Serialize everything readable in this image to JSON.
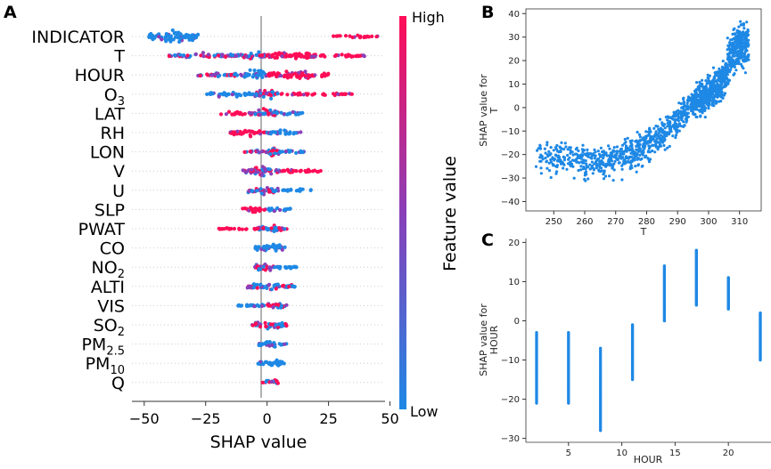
{
  "panel_labels": {
    "a": "A",
    "b": "B",
    "c": "C"
  },
  "colors": {
    "low": "#1E88E5",
    "high": "#FF0D57",
    "mid": "#8A3FB8",
    "axis": "#333333",
    "zero": "#999999"
  },
  "chart_data": [
    {
      "type": "beeswarm",
      "xlabel": "SHAP value",
      "xlim": [
        -55,
        48
      ],
      "xticks": [
        -50,
        -25,
        0,
        25,
        50
      ],
      "tick_labels": [
        "−50",
        "−25",
        "0",
        "25",
        "50"
      ],
      "colorbar": {
        "title": "Feature value",
        "high_label": "High",
        "low_label": "Low"
      },
      "features": [
        {
          "name": "INDICATOR",
          "sub": "",
          "range": [
            -48,
            45
          ],
          "groups": [
            {
              "from": -48,
              "to": -28,
              "w": 1.0,
              "c": "low"
            },
            {
              "from": 26,
              "to": 45,
              "w": 0.25,
              "c": "high"
            }
          ]
        },
        {
          "name": "T",
          "sub": "",
          "range": [
            -40,
            40
          ],
          "groups": [
            {
              "from": -40,
              "to": -10,
              "w": 0.45,
              "c": "mix"
            },
            {
              "from": -10,
              "to": 0,
              "w": 0.75,
              "c": "mix"
            },
            {
              "from": 0,
              "to": 20,
              "w": 0.8,
              "c": "high"
            },
            {
              "from": 20,
              "to": 40,
              "w": 0.35,
              "c": "high"
            }
          ]
        },
        {
          "name": "HOUR",
          "sub": "",
          "range": [
            -30,
            25
          ],
          "groups": [
            {
              "from": -30,
              "to": -10,
              "w": 0.45,
              "c": "mix"
            },
            {
              "from": -10,
              "to": 0,
              "w": 0.9,
              "c": "low"
            },
            {
              "from": 0,
              "to": 25,
              "w": 0.75,
              "c": "high"
            }
          ]
        },
        {
          "name": "O",
          "sub": "3",
          "range": [
            -25,
            35
          ],
          "groups": [
            {
              "from": -25,
              "to": -5,
              "w": 0.5,
              "c": "low"
            },
            {
              "from": -5,
              "to": 5,
              "w": 0.85,
              "c": "mix"
            },
            {
              "from": 5,
              "to": 35,
              "w": 0.3,
              "c": "high"
            }
          ]
        },
        {
          "name": "LAT",
          "sub": "",
          "range": [
            -20,
            15
          ],
          "groups": [
            {
              "from": -20,
              "to": -5,
              "w": 0.4,
              "c": "high"
            },
            {
              "from": -5,
              "to": 5,
              "w": 0.9,
              "c": "mix"
            },
            {
              "from": 5,
              "to": 15,
              "w": 0.35,
              "c": "low"
            }
          ]
        },
        {
          "name": "RH",
          "sub": "",
          "range": [
            -15,
            15
          ],
          "groups": [
            {
              "from": -15,
              "to": 0,
              "w": 0.6,
              "c": "high"
            },
            {
              "from": 0,
              "to": 15,
              "w": 0.5,
              "c": "low"
            }
          ]
        },
        {
          "name": "LON",
          "sub": "",
          "range": [
            -10,
            15
          ],
          "groups": [
            {
              "from": -10,
              "to": 0,
              "w": 0.35,
              "c": "mix"
            },
            {
              "from": 0,
              "to": 5,
              "w": 0.9,
              "c": "mix"
            },
            {
              "from": 5,
              "to": 15,
              "w": 0.3,
              "c": "low"
            }
          ]
        },
        {
          "name": "V",
          "sub": "",
          "range": [
            -10,
            22
          ],
          "groups": [
            {
              "from": -10,
              "to": 5,
              "w": 0.85,
              "c": "mix"
            },
            {
              "from": 5,
              "to": 22,
              "w": 0.4,
              "c": "high"
            }
          ]
        },
        {
          "name": "U",
          "sub": "",
          "range": [
            -8,
            18
          ],
          "groups": [
            {
              "from": -8,
              "to": 5,
              "w": 0.85,
              "c": "mix"
            },
            {
              "from": 5,
              "to": 18,
              "w": 0.35,
              "c": "low"
            }
          ]
        },
        {
          "name": "SLP",
          "sub": "",
          "range": [
            -10,
            10
          ],
          "groups": [
            {
              "from": -10,
              "to": 0,
              "w": 0.5,
              "c": "high"
            },
            {
              "from": 0,
              "to": 10,
              "w": 0.45,
              "c": "low"
            }
          ]
        },
        {
          "name": "PWAT",
          "sub": "",
          "range": [
            -20,
            8
          ],
          "groups": [
            {
              "from": -20,
              "to": -5,
              "w": 0.3,
              "c": "high"
            },
            {
              "from": -5,
              "to": 8,
              "w": 0.8,
              "c": "mix"
            }
          ]
        },
        {
          "name": "CO",
          "sub": "",
          "range": [
            -5,
            8
          ],
          "groups": [
            {
              "from": -5,
              "to": 8,
              "w": 0.8,
              "c": "low"
            }
          ]
        },
        {
          "name": "NO",
          "sub": "2",
          "range": [
            -5,
            12
          ],
          "groups": [
            {
              "from": -5,
              "to": 3,
              "w": 0.85,
              "c": "mix"
            },
            {
              "from": 3,
              "to": 12,
              "w": 0.3,
              "c": "low"
            }
          ]
        },
        {
          "name": "ALTI",
          "sub": "",
          "range": [
            -8,
            12
          ],
          "groups": [
            {
              "from": -8,
              "to": 5,
              "w": 0.85,
              "c": "mix"
            },
            {
              "from": 5,
              "to": 12,
              "w": 0.35,
              "c": "mix"
            }
          ]
        },
        {
          "name": "VIS",
          "sub": "",
          "range": [
            -12,
            8
          ],
          "groups": [
            {
              "from": -12,
              "to": 0,
              "w": 0.4,
              "c": "low"
            },
            {
              "from": 0,
              "to": 8,
              "w": 0.75,
              "c": "mix"
            }
          ]
        },
        {
          "name": "SO",
          "sub": "2",
          "range": [
            -6,
            8
          ],
          "groups": [
            {
              "from": -6,
              "to": 8,
              "w": 0.85,
              "c": "mix"
            }
          ]
        },
        {
          "name": "PM",
          "sub": "2.5",
          "range": [
            -4,
            8
          ],
          "groups": [
            {
              "from": -4,
              "to": 8,
              "w": 0.7,
              "c": "low"
            }
          ]
        },
        {
          "name": "PM",
          "sub": "10",
          "range": [
            -4,
            7
          ],
          "groups": [
            {
              "from": -4,
              "to": 7,
              "w": 0.7,
              "c": "low"
            }
          ]
        },
        {
          "name": "Q",
          "sub": "",
          "range": [
            -2,
            5
          ],
          "groups": [
            {
              "from": -2,
              "to": 5,
              "w": 0.6,
              "c": "mix"
            }
          ]
        }
      ]
    },
    {
      "type": "scatter",
      "xlabel": "T",
      "ylabel_lines": [
        "SHAP value for",
        "T"
      ],
      "xlim": [
        241,
        317
      ],
      "ylim": [
        -44,
        42
      ],
      "xticks": [
        250,
        260,
        270,
        280,
        290,
        300,
        310
      ],
      "yticks": [
        -40,
        -30,
        -20,
        -10,
        0,
        10,
        20,
        30,
        40
      ],
      "trend": {
        "x": [
          245,
          255,
          265,
          275,
          285,
          290,
          295,
          300,
          305,
          310
        ],
        "y": [
          -20,
          -22,
          -24,
          -20,
          -12,
          -5,
          2,
          6,
          12,
          22
        ]
      },
      "spread": 9
    },
    {
      "type": "scatter",
      "xlabel": "HOUR",
      "ylabel_lines": [
        "SHAP value for",
        "HOUR"
      ],
      "xlim": [
        1,
        24
      ],
      "ylim": [
        -31,
        21
      ],
      "xticks": [
        5,
        10,
        15,
        20
      ],
      "yticks": [
        -30,
        -20,
        -10,
        0,
        10,
        20
      ],
      "x": [
        2,
        5,
        8,
        11,
        14,
        17,
        20,
        23
      ],
      "ymin": [
        -21,
        -21,
        -28,
        -15,
        0,
        4,
        3,
        -10
      ],
      "ymax": [
        -3,
        -3,
        -7,
        -1,
        14,
        18,
        11,
        2
      ]
    }
  ]
}
